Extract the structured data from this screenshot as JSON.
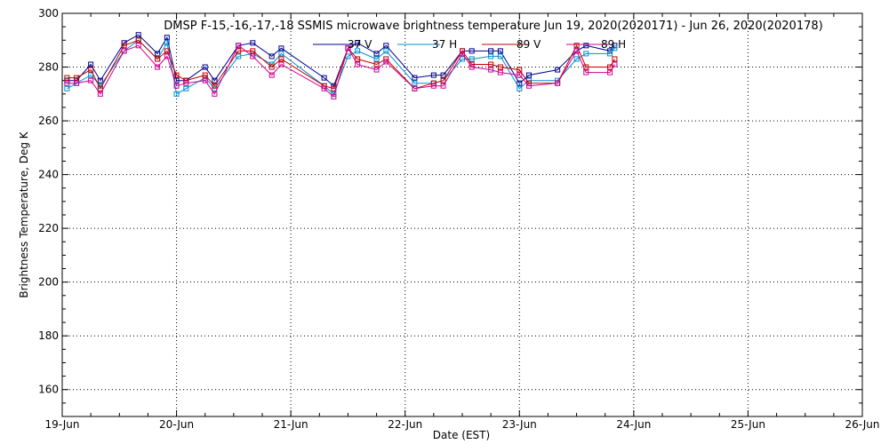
{
  "chart_data": {
    "type": "line",
    "title": "DMSP F-15,-16,-17,-18 SSMIS microwave brightness temperature Jun 19, 2020(2020171) - Jun 26, 2020(2020178)",
    "xlabel": "Date (EST)",
    "ylabel": "Brightness Temperature, Deg K",
    "xlim": [
      "2020-06-19T00:00",
      "2020-06-26T00:00"
    ],
    "ylim": [
      150,
      300
    ],
    "yticks": [
      160,
      180,
      200,
      220,
      240,
      260,
      280,
      300
    ],
    "xticks": [
      {
        "date": "2020-06-19T00:00",
        "label": "19-Jun"
      },
      {
        "date": "2020-06-20T00:00",
        "label": "20-Jun"
      },
      {
        "date": "2020-06-21T00:00",
        "label": "21-Jun"
      },
      {
        "date": "2020-06-22T00:00",
        "label": "22-Jun"
      },
      {
        "date": "2020-06-23T00:00",
        "label": "23-Jun"
      },
      {
        "date": "2020-06-24T00:00",
        "label": "24-Jun"
      },
      {
        "date": "2020-06-25T00:00",
        "label": "25-Jun"
      },
      {
        "date": "2020-06-26T00:00",
        "label": "26-Jun"
      }
    ],
    "grid": true,
    "legend_position": "top-center",
    "x": [
      "2020-06-19T01:00",
      "2020-06-19T03:00",
      "2020-06-19T06:00",
      "2020-06-19T08:00",
      "2020-06-19T13:00",
      "2020-06-19T16:00",
      "2020-06-19T20:00",
      "2020-06-19T22:00",
      "2020-06-20T00:00",
      "2020-06-20T02:00",
      "2020-06-20T06:00",
      "2020-06-20T08:00",
      "2020-06-20T13:00",
      "2020-06-20T16:00",
      "2020-06-20T20:00",
      "2020-06-20T22:00",
      "2020-06-21T07:00",
      "2020-06-21T09:00",
      "2020-06-21T12:00",
      "2020-06-21T14:00",
      "2020-06-21T18:00",
      "2020-06-21T20:00",
      "2020-06-22T02:00",
      "2020-06-22T06:00",
      "2020-06-22T08:00",
      "2020-06-22T12:00",
      "2020-06-22T14:00",
      "2020-06-22T18:00",
      "2020-06-22T20:00",
      "2020-06-23T00:00",
      "2020-06-23T02:00",
      "2020-06-23T08:00",
      "2020-06-23T12:00",
      "2020-06-23T14:00",
      "2020-06-23T19:00",
      "2020-06-23T20:00"
    ],
    "series": [
      {
        "name": "37 V",
        "color": "#000090",
        "values": [
          275,
          275,
          281,
          275,
          289,
          292,
          285,
          291,
          275,
          275,
          280,
          275,
          288,
          289,
          284,
          287,
          276,
          273,
          287,
          289,
          285,
          288,
          276,
          277,
          277,
          286,
          286,
          286,
          286,
          274,
          277,
          279,
          286,
          288,
          286,
          288
        ]
      },
      {
        "name": "37 H",
        "color": "#0090d0",
        "values": [
          272,
          274,
          277,
          273,
          286,
          290,
          283,
          289,
          270,
          272,
          276,
          272,
          284,
          285,
          281,
          285,
          273,
          270,
          284,
          286,
          283,
          286,
          274,
          274,
          275,
          283,
          283,
          284,
          284,
          272,
          275,
          275,
          283,
          285,
          285,
          287
        ]
      },
      {
        "name": "89 V",
        "color": "#c00000",
        "values": [
          276,
          276,
          279,
          272,
          288,
          290,
          283,
          286,
          277,
          275,
          277,
          273,
          286,
          286,
          280,
          283,
          273,
          272,
          287,
          283,
          281,
          283,
          272,
          274,
          275,
          286,
          281,
          281,
          280,
          279,
          274,
          274,
          288,
          280,
          280,
          283
        ]
      },
      {
        "name": "89 H",
        "color": "#d00090",
        "values": [
          274,
          274,
          275,
          270,
          286,
          288,
          280,
          284,
          273,
          274,
          275,
          270,
          288,
          284,
          277,
          281,
          272,
          269,
          287,
          281,
          279,
          282,
          272,
          273,
          273,
          285,
          280,
          279,
          278,
          277,
          273,
          274,
          286,
          278,
          278,
          281
        ]
      }
    ]
  }
}
